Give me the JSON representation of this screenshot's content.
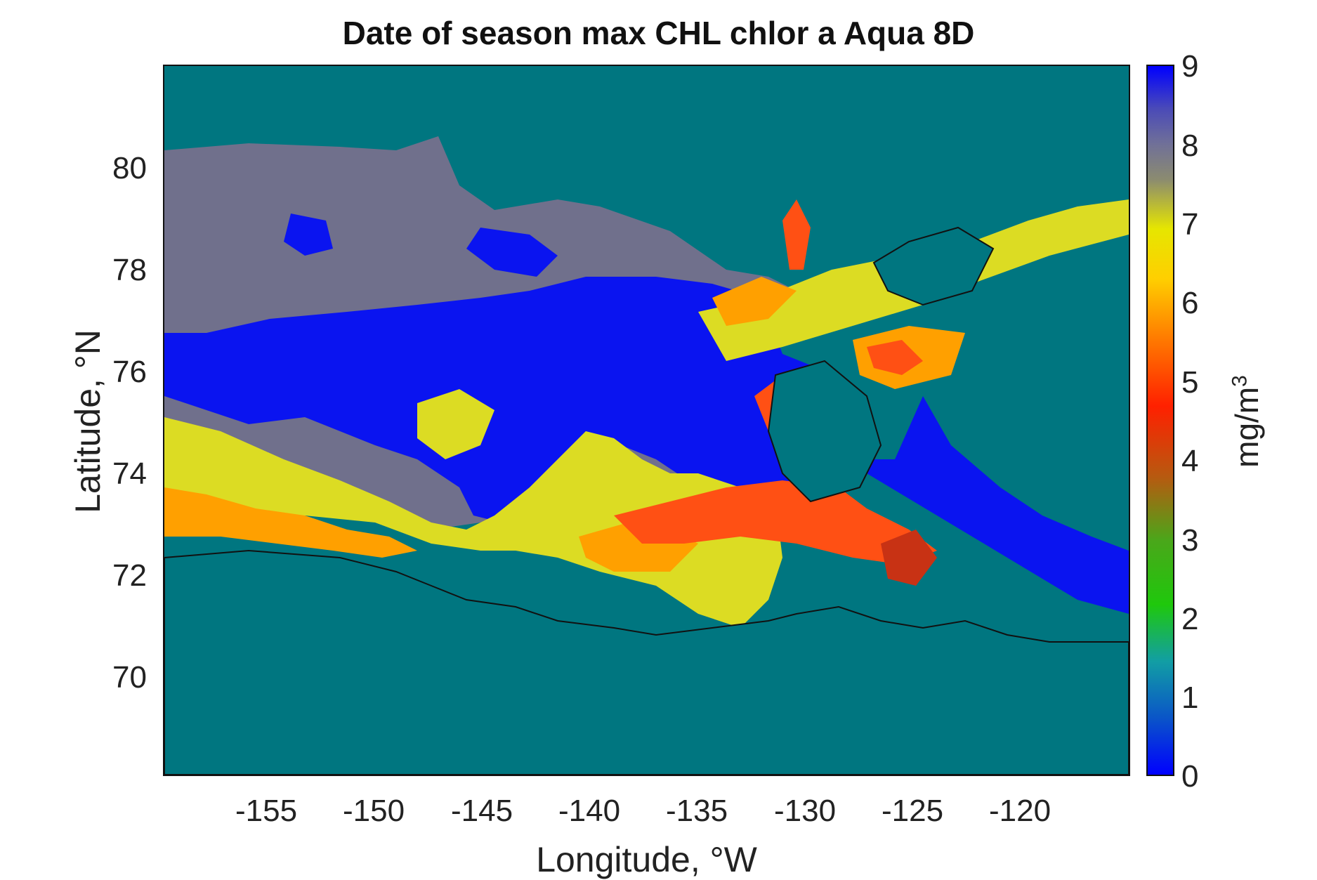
{
  "title": "Date of season max CHL chlor a Aqua 8D",
  "axes": {
    "xlabel": "Longitude, °W",
    "ylabel": "Latitude, °N",
    "xticks": [
      "-155",
      "-150",
      "-145",
      "-140",
      "-135",
      "-130",
      "-125",
      "-120"
    ],
    "yticks": [
      "80",
      "78",
      "76",
      "74",
      "72",
      "70"
    ],
    "xlim": [
      -160,
      -115
    ],
    "ylim": [
      68,
      82
    ]
  },
  "colorbar": {
    "label": "mg/m",
    "label_superscript": "3",
    "ticks": [
      "9",
      "8",
      "7",
      "6",
      "5",
      "4",
      "3",
      "2",
      "1",
      "0"
    ],
    "range": [
      0,
      9
    ],
    "stops": [
      "#0000ff",
      "#0a55c8",
      "#129ea4",
      "#1fc80c",
      "#4aa71a",
      "#b75a10",
      "#ff2000",
      "#ff7f00",
      "#ffcf00",
      "#e6e600",
      "#8b8b70",
      "#707098",
      "#4a4ab8",
      "#0000ff"
    ]
  },
  "map_colors": {
    "background": "#007680",
    "land": "#007680",
    "gray": "#70708c",
    "blue": "#0a14f0",
    "yellow": "#dcdc23",
    "orange": "#ffa000",
    "red": "#ff5014",
    "darkred": "#c83214",
    "coastline": "#111111"
  }
}
